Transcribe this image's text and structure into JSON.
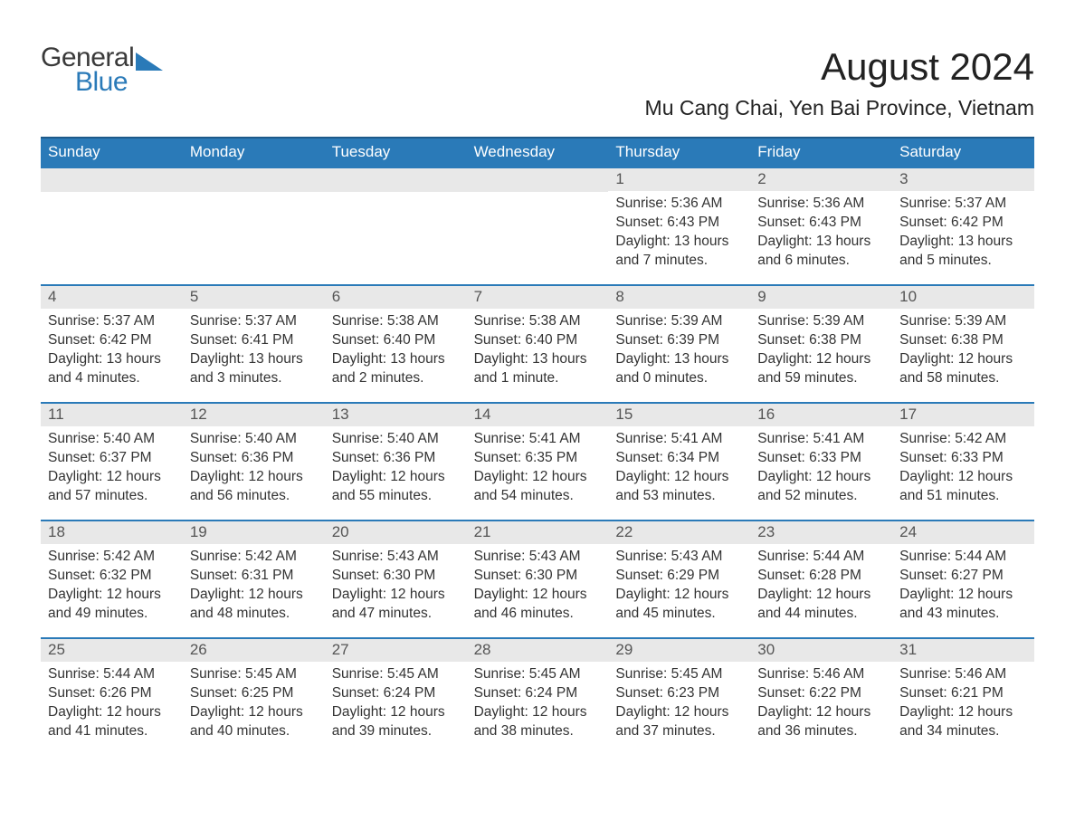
{
  "brand": {
    "part1": "General",
    "part2": "Blue",
    "color1": "#3a3a3a",
    "color2": "#2a7ab8"
  },
  "header": {
    "title": "August 2024",
    "location": "Mu Cang Chai, Yen Bai Province, Vietnam"
  },
  "styling": {
    "header_bg": "#2a7ab8",
    "header_border": "#1d5a8a",
    "row_border": "#2a7ab8",
    "daynum_bg": "#e8e8e8",
    "daynum_color": "#555555",
    "body_text_color": "#333333",
    "page_bg": "#ffffff",
    "title_fontsize": 42,
    "location_fontsize": 23,
    "weekday_fontsize": 17,
    "body_fontsize": 15.5
  },
  "weekdays": [
    "Sunday",
    "Monday",
    "Tuesday",
    "Wednesday",
    "Thursday",
    "Friday",
    "Saturday"
  ],
  "weeks": [
    [
      null,
      null,
      null,
      null,
      {
        "n": "1",
        "sunrise": "Sunrise: 5:36 AM",
        "sunset": "Sunset: 6:43 PM",
        "daylight": "Daylight: 13 hours and 7 minutes."
      },
      {
        "n": "2",
        "sunrise": "Sunrise: 5:36 AM",
        "sunset": "Sunset: 6:43 PM",
        "daylight": "Daylight: 13 hours and 6 minutes."
      },
      {
        "n": "3",
        "sunrise": "Sunrise: 5:37 AM",
        "sunset": "Sunset: 6:42 PM",
        "daylight": "Daylight: 13 hours and 5 minutes."
      }
    ],
    [
      {
        "n": "4",
        "sunrise": "Sunrise: 5:37 AM",
        "sunset": "Sunset: 6:42 PM",
        "daylight": "Daylight: 13 hours and 4 minutes."
      },
      {
        "n": "5",
        "sunrise": "Sunrise: 5:37 AM",
        "sunset": "Sunset: 6:41 PM",
        "daylight": "Daylight: 13 hours and 3 minutes."
      },
      {
        "n": "6",
        "sunrise": "Sunrise: 5:38 AM",
        "sunset": "Sunset: 6:40 PM",
        "daylight": "Daylight: 13 hours and 2 minutes."
      },
      {
        "n": "7",
        "sunrise": "Sunrise: 5:38 AM",
        "sunset": "Sunset: 6:40 PM",
        "daylight": "Daylight: 13 hours and 1 minute."
      },
      {
        "n": "8",
        "sunrise": "Sunrise: 5:39 AM",
        "sunset": "Sunset: 6:39 PM",
        "daylight": "Daylight: 13 hours and 0 minutes."
      },
      {
        "n": "9",
        "sunrise": "Sunrise: 5:39 AM",
        "sunset": "Sunset: 6:38 PM",
        "daylight": "Daylight: 12 hours and 59 minutes."
      },
      {
        "n": "10",
        "sunrise": "Sunrise: 5:39 AM",
        "sunset": "Sunset: 6:38 PM",
        "daylight": "Daylight: 12 hours and 58 minutes."
      }
    ],
    [
      {
        "n": "11",
        "sunrise": "Sunrise: 5:40 AM",
        "sunset": "Sunset: 6:37 PM",
        "daylight": "Daylight: 12 hours and 57 minutes."
      },
      {
        "n": "12",
        "sunrise": "Sunrise: 5:40 AM",
        "sunset": "Sunset: 6:36 PM",
        "daylight": "Daylight: 12 hours and 56 minutes."
      },
      {
        "n": "13",
        "sunrise": "Sunrise: 5:40 AM",
        "sunset": "Sunset: 6:36 PM",
        "daylight": "Daylight: 12 hours and 55 minutes."
      },
      {
        "n": "14",
        "sunrise": "Sunrise: 5:41 AM",
        "sunset": "Sunset: 6:35 PM",
        "daylight": "Daylight: 12 hours and 54 minutes."
      },
      {
        "n": "15",
        "sunrise": "Sunrise: 5:41 AM",
        "sunset": "Sunset: 6:34 PM",
        "daylight": "Daylight: 12 hours and 53 minutes."
      },
      {
        "n": "16",
        "sunrise": "Sunrise: 5:41 AM",
        "sunset": "Sunset: 6:33 PM",
        "daylight": "Daylight: 12 hours and 52 minutes."
      },
      {
        "n": "17",
        "sunrise": "Sunrise: 5:42 AM",
        "sunset": "Sunset: 6:33 PM",
        "daylight": "Daylight: 12 hours and 51 minutes."
      }
    ],
    [
      {
        "n": "18",
        "sunrise": "Sunrise: 5:42 AM",
        "sunset": "Sunset: 6:32 PM",
        "daylight": "Daylight: 12 hours and 49 minutes."
      },
      {
        "n": "19",
        "sunrise": "Sunrise: 5:42 AM",
        "sunset": "Sunset: 6:31 PM",
        "daylight": "Daylight: 12 hours and 48 minutes."
      },
      {
        "n": "20",
        "sunrise": "Sunrise: 5:43 AM",
        "sunset": "Sunset: 6:30 PM",
        "daylight": "Daylight: 12 hours and 47 minutes."
      },
      {
        "n": "21",
        "sunrise": "Sunrise: 5:43 AM",
        "sunset": "Sunset: 6:30 PM",
        "daylight": "Daylight: 12 hours and 46 minutes."
      },
      {
        "n": "22",
        "sunrise": "Sunrise: 5:43 AM",
        "sunset": "Sunset: 6:29 PM",
        "daylight": "Daylight: 12 hours and 45 minutes."
      },
      {
        "n": "23",
        "sunrise": "Sunrise: 5:44 AM",
        "sunset": "Sunset: 6:28 PM",
        "daylight": "Daylight: 12 hours and 44 minutes."
      },
      {
        "n": "24",
        "sunrise": "Sunrise: 5:44 AM",
        "sunset": "Sunset: 6:27 PM",
        "daylight": "Daylight: 12 hours and 43 minutes."
      }
    ],
    [
      {
        "n": "25",
        "sunrise": "Sunrise: 5:44 AM",
        "sunset": "Sunset: 6:26 PM",
        "daylight": "Daylight: 12 hours and 41 minutes."
      },
      {
        "n": "26",
        "sunrise": "Sunrise: 5:45 AM",
        "sunset": "Sunset: 6:25 PM",
        "daylight": "Daylight: 12 hours and 40 minutes."
      },
      {
        "n": "27",
        "sunrise": "Sunrise: 5:45 AM",
        "sunset": "Sunset: 6:24 PM",
        "daylight": "Daylight: 12 hours and 39 minutes."
      },
      {
        "n": "28",
        "sunrise": "Sunrise: 5:45 AM",
        "sunset": "Sunset: 6:24 PM",
        "daylight": "Daylight: 12 hours and 38 minutes."
      },
      {
        "n": "29",
        "sunrise": "Sunrise: 5:45 AM",
        "sunset": "Sunset: 6:23 PM",
        "daylight": "Daylight: 12 hours and 37 minutes."
      },
      {
        "n": "30",
        "sunrise": "Sunrise: 5:46 AM",
        "sunset": "Sunset: 6:22 PM",
        "daylight": "Daylight: 12 hours and 36 minutes."
      },
      {
        "n": "31",
        "sunrise": "Sunrise: 5:46 AM",
        "sunset": "Sunset: 6:21 PM",
        "daylight": "Daylight: 12 hours and 34 minutes."
      }
    ]
  ]
}
